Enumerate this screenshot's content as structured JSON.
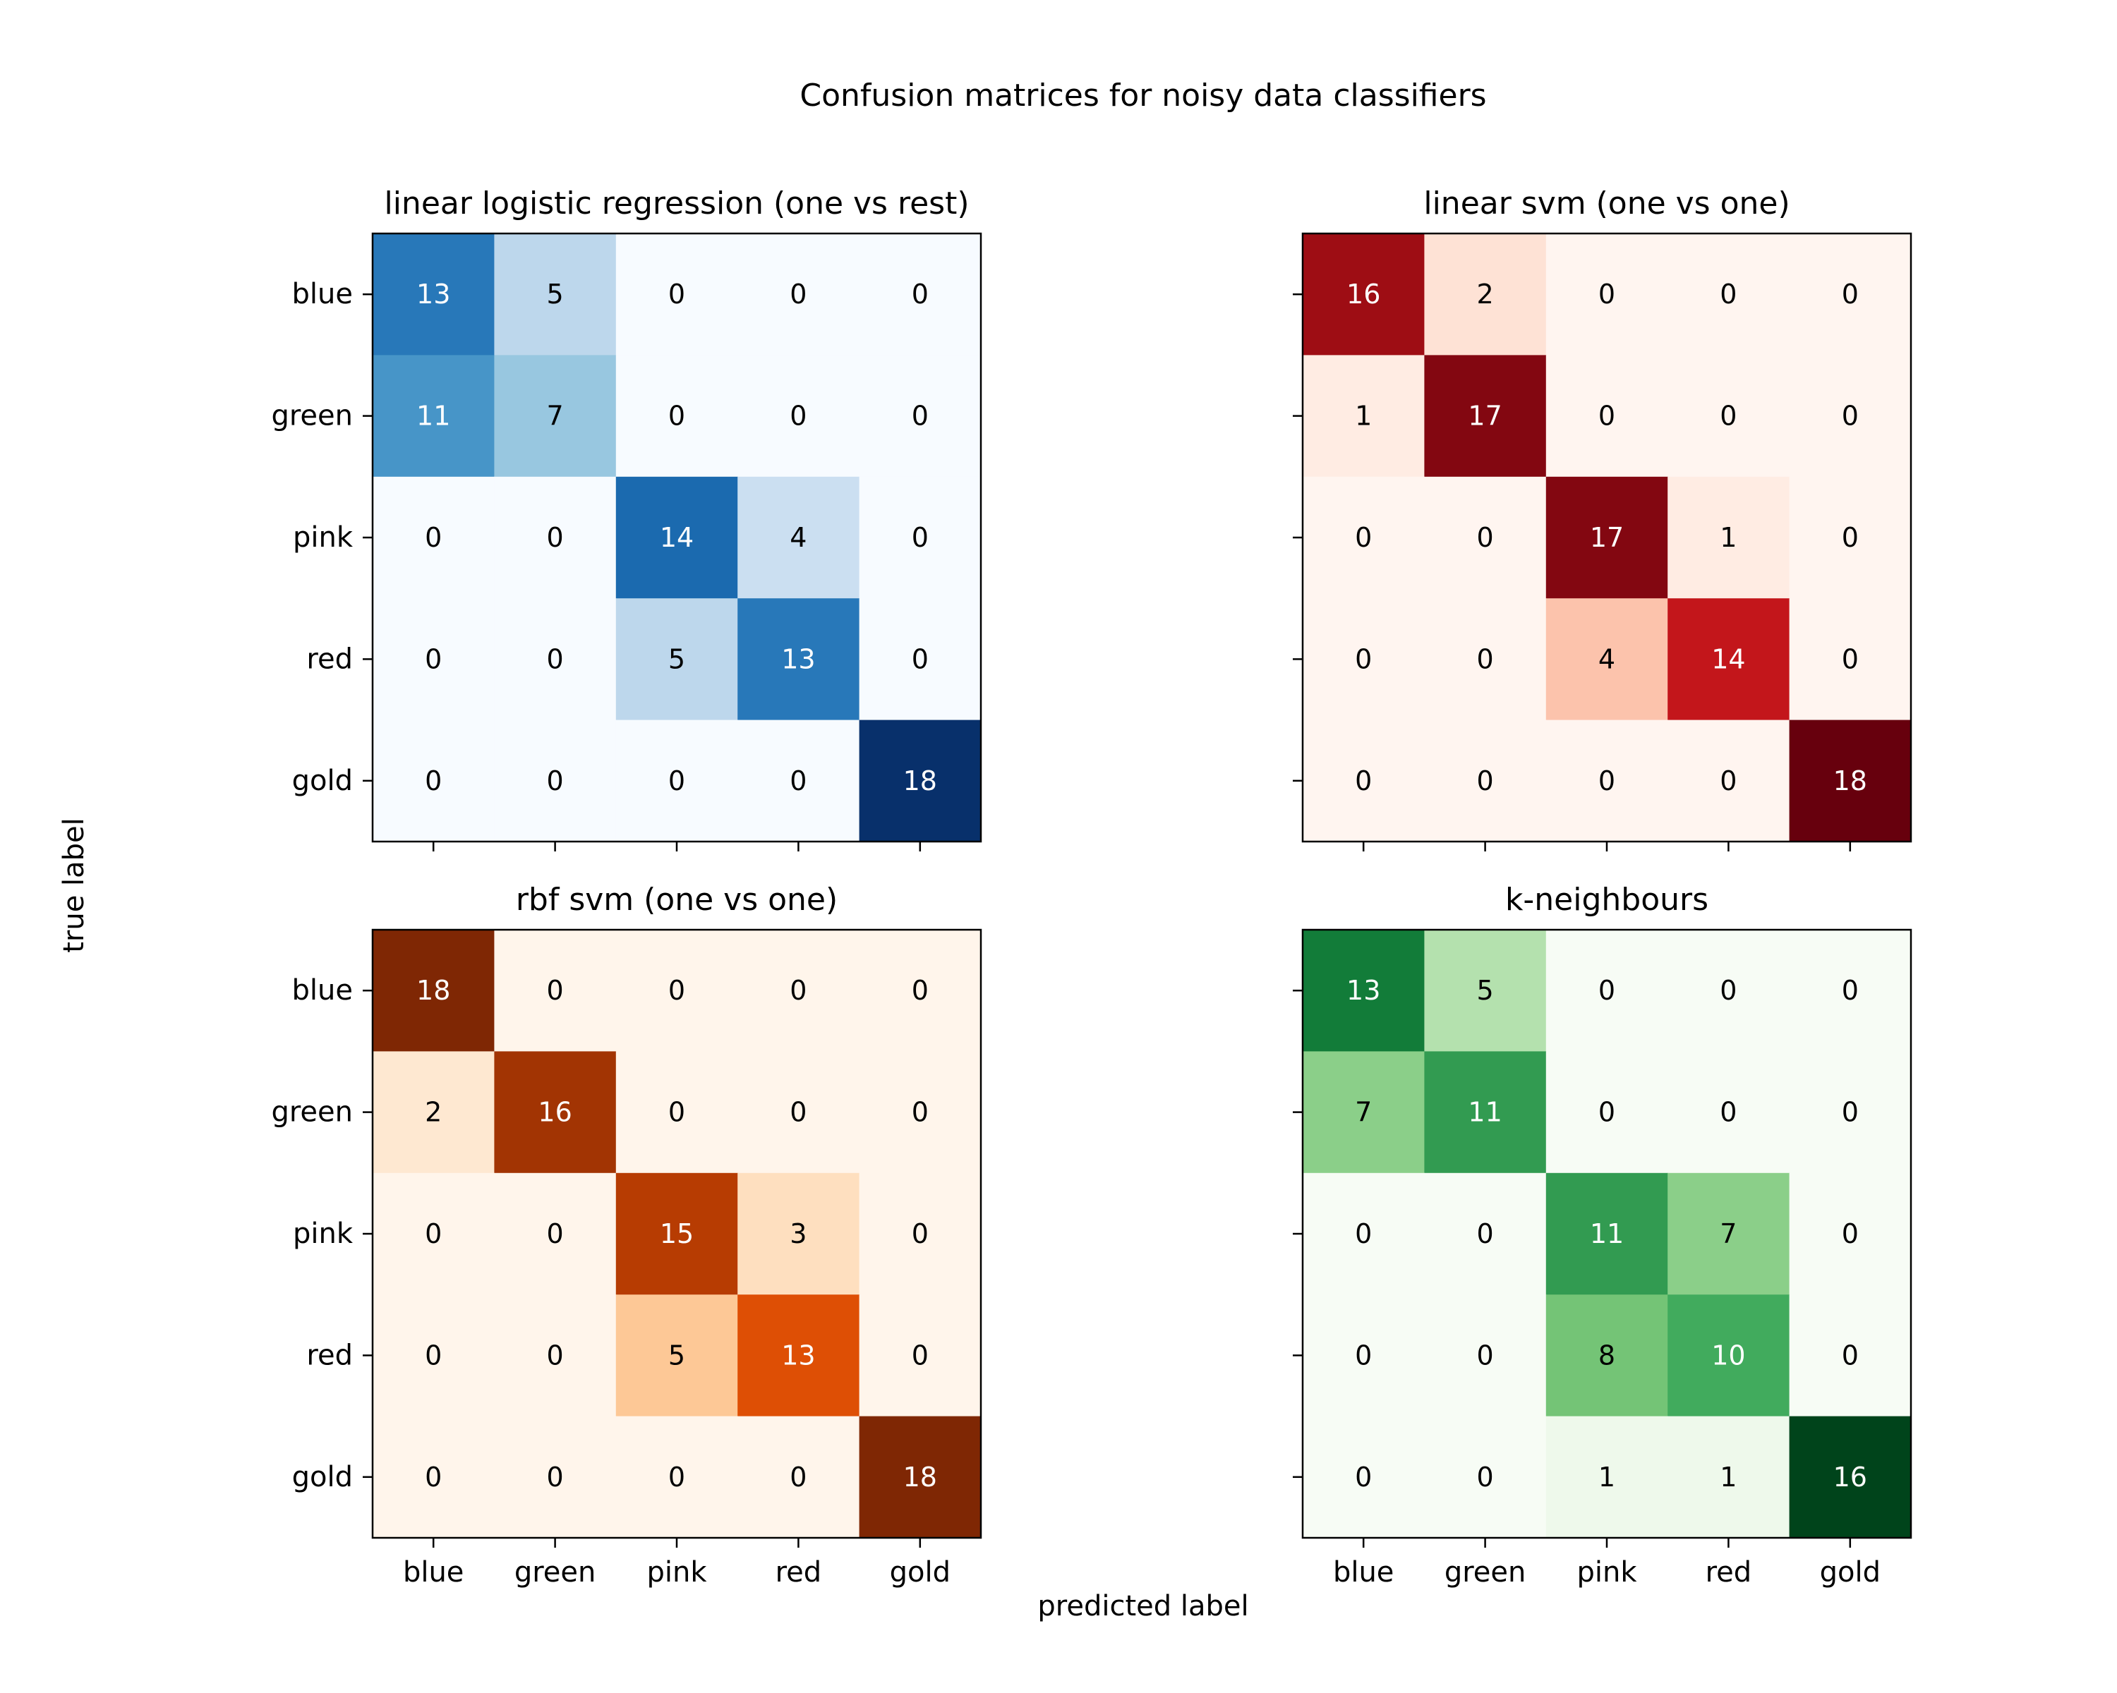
{
  "figure": {
    "title": "Confusion matrices for noisy data classifiers",
    "xlabel": "predicted label",
    "ylabel": "true label"
  },
  "chart_data": [
    {
      "type": "heatmap",
      "title": "linear logistic regression (one vs rest)",
      "colormap": "Blues",
      "colors": {
        "low": "#f7fbff",
        "high": "#08306b"
      },
      "x_categories": [
        "blue",
        "green",
        "pink",
        "red",
        "gold"
      ],
      "y_categories": [
        "blue",
        "green",
        "pink",
        "red",
        "gold"
      ],
      "values": [
        [
          13,
          5,
          0,
          0,
          0
        ],
        [
          11,
          7,
          0,
          0,
          0
        ],
        [
          0,
          0,
          14,
          4,
          0
        ],
        [
          0,
          0,
          5,
          13,
          0
        ],
        [
          0,
          0,
          0,
          0,
          18
        ]
      ],
      "show_x_ticklabels": false,
      "show_y_ticklabels": true
    },
    {
      "type": "heatmap",
      "title": "linear svm (one vs one)",
      "colormap": "Reds",
      "colors": {
        "low": "#fff5f0",
        "high": "#67000d"
      },
      "x_categories": [
        "blue",
        "green",
        "pink",
        "red",
        "gold"
      ],
      "y_categories": [
        "blue",
        "green",
        "pink",
        "red",
        "gold"
      ],
      "values": [
        [
          16,
          2,
          0,
          0,
          0
        ],
        [
          1,
          17,
          0,
          0,
          0
        ],
        [
          0,
          0,
          17,
          1,
          0
        ],
        [
          0,
          0,
          4,
          14,
          0
        ],
        [
          0,
          0,
          0,
          0,
          18
        ]
      ],
      "show_x_ticklabels": false,
      "show_y_ticklabels": false
    },
    {
      "type": "heatmap",
      "title": "rbf svm (one vs one)",
      "colormap": "Oranges",
      "colors": {
        "low": "#fff5eb",
        "high": "#7f2704"
      },
      "x_categories": [
        "blue",
        "green",
        "pink",
        "red",
        "gold"
      ],
      "y_categories": [
        "blue",
        "green",
        "pink",
        "red",
        "gold"
      ],
      "values": [
        [
          18,
          0,
          0,
          0,
          0
        ],
        [
          2,
          16,
          0,
          0,
          0
        ],
        [
          0,
          0,
          15,
          3,
          0
        ],
        [
          0,
          0,
          5,
          13,
          0
        ],
        [
          0,
          0,
          0,
          0,
          18
        ]
      ],
      "show_x_ticklabels": true,
      "show_y_ticklabels": true
    },
    {
      "type": "heatmap",
      "title": "k-neighbours",
      "colormap": "Greens",
      "colors": {
        "low": "#f7fcf5",
        "high": "#00441b"
      },
      "x_categories": [
        "blue",
        "green",
        "pink",
        "red",
        "gold"
      ],
      "y_categories": [
        "blue",
        "green",
        "pink",
        "red",
        "gold"
      ],
      "values": [
        [
          13,
          5,
          0,
          0,
          0
        ],
        [
          7,
          11,
          0,
          0,
          0
        ],
        [
          0,
          0,
          11,
          7,
          0
        ],
        [
          0,
          0,
          8,
          10,
          0
        ],
        [
          0,
          0,
          1,
          1,
          16
        ]
      ],
      "show_x_ticklabels": true,
      "show_y_ticklabels": false
    }
  ]
}
